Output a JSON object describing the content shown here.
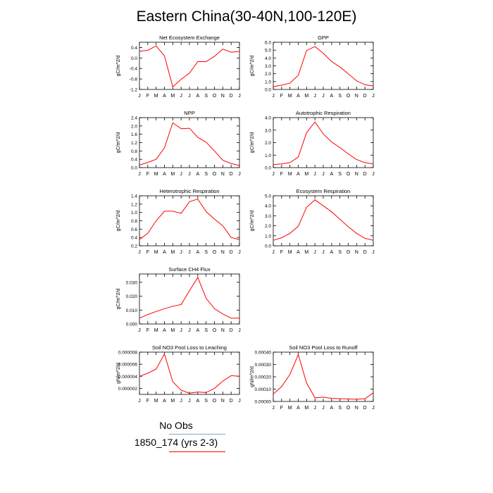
{
  "page": {
    "title": "Eastern China(30-40N,100-120E)"
  },
  "legend": [
    {
      "label": "No Obs",
      "color": "#8aa4c8"
    },
    {
      "label": "1850_174 (yrs 2-3)",
      "color": "#ff0000"
    }
  ],
  "chart_data": [
    {
      "type": "line",
      "title": "Net Ecosystem Exchange",
      "ylabel": "gC/m^2/d",
      "x": [
        "J",
        "F",
        "M",
        "A",
        "M",
        "J",
        "J",
        "A",
        "S",
        "O",
        "N",
        "D",
        "J"
      ],
      "ylim": [
        -1.2,
        0.6
      ],
      "yticks": [
        "0.4",
        "0.0",
        "-0.4",
        "-0.8",
        "-1.2"
      ],
      "ytick_values": [
        0.4,
        0.0,
        -0.4,
        -0.8,
        -1.2
      ],
      "series": [
        {
          "values": [
            0.26,
            0.29,
            0.46,
            0.08,
            -1.1,
            -0.81,
            -0.58,
            -0.14,
            -0.14,
            0.06,
            0.34,
            0.22,
            0.25
          ],
          "color": "#ff0000"
        }
      ]
    },
    {
      "type": "line",
      "title": "GPP",
      "ylabel": "gC/m^2/d",
      "x": [
        "J",
        "F",
        "M",
        "A",
        "M",
        "J",
        "J",
        "A",
        "S",
        "O",
        "N",
        "D",
        "J"
      ],
      "ylim": [
        0.0,
        6.0
      ],
      "yticks": [
        "6.0",
        "5.0",
        "4.0",
        "3.0",
        "2.0",
        "1.0",
        "0.0"
      ],
      "ytick_values": [
        6,
        5,
        4,
        3,
        2,
        1,
        0
      ],
      "series": [
        {
          "values": [
            0.35,
            0.55,
            0.8,
            1.8,
            4.95,
            5.45,
            4.6,
            3.55,
            2.85,
            2.0,
            1.1,
            0.6,
            0.45
          ],
          "color": "#ff0000"
        }
      ]
    },
    {
      "type": "line",
      "title": "NPP",
      "ylabel": "gC/m^2/d",
      "x": [
        "J",
        "F",
        "M",
        "A",
        "M",
        "J",
        "J",
        "A",
        "S",
        "O",
        "N",
        "D",
        "J"
      ],
      "ylim": [
        0.0,
        2.4
      ],
      "yticks": [
        "2.4",
        "2.0",
        "1.6",
        "1.2",
        "0.8",
        "0.4",
        "0.0"
      ],
      "ytick_values": [
        2.4,
        2.0,
        1.6,
        1.2,
        0.8,
        0.4,
        0.0
      ],
      "series": [
        {
          "values": [
            0.12,
            0.25,
            0.4,
            0.95,
            2.15,
            1.87,
            1.89,
            1.45,
            1.22,
            0.8,
            0.35,
            0.2,
            0.1
          ],
          "color": "#ff0000"
        }
      ]
    },
    {
      "type": "line",
      "title": "Autotrophic Respiration",
      "ylabel": "gC/m^2/d",
      "x": [
        "J",
        "F",
        "M",
        "A",
        "M",
        "J",
        "J",
        "A",
        "S",
        "O",
        "N",
        "D",
        "J"
      ],
      "ylim": [
        0.0,
        4.0
      ],
      "yticks": [
        "4.0",
        "3.0",
        "2.0",
        "1.0",
        "0.0"
      ],
      "ytick_values": [
        4,
        3,
        2,
        1,
        0
      ],
      "series": [
        {
          "values": [
            0.25,
            0.3,
            0.4,
            0.85,
            2.8,
            3.65,
            2.7,
            2.05,
            1.6,
            1.1,
            0.65,
            0.4,
            0.3
          ],
          "color": "#ff0000"
        }
      ]
    },
    {
      "type": "line",
      "title": "Heterotrophic Respiration",
      "ylabel": "gC/m^2/d",
      "x": [
        "J",
        "F",
        "M",
        "A",
        "M",
        "J",
        "J",
        "A",
        "S",
        "O",
        "N",
        "D",
        "J"
      ],
      "ylim": [
        0.2,
        1.4
      ],
      "yticks": [
        "1.4",
        "1.2",
        "1.0",
        "0.8",
        "0.6",
        "0.4",
        "0.2"
      ],
      "ytick_values": [
        1.4,
        1.2,
        1.0,
        0.8,
        0.6,
        0.4,
        0.2
      ],
      "series": [
        {
          "values": [
            0.35,
            0.5,
            0.8,
            1.03,
            1.03,
            0.98,
            1.26,
            1.32,
            1.02,
            0.84,
            0.68,
            0.4,
            0.35
          ],
          "color": "#ff0000"
        }
      ]
    },
    {
      "type": "line",
      "title": "Ecosystem Respiration",
      "ylabel": "gC/m^2/d",
      "x": [
        "J",
        "F",
        "M",
        "A",
        "M",
        "J",
        "J",
        "A",
        "S",
        "O",
        "N",
        "D",
        "J"
      ],
      "ylim": [
        0.0,
        5.0
      ],
      "yticks": [
        "5.0",
        "4.0",
        "3.0",
        "2.0",
        "1.0",
        "0.0"
      ],
      "ytick_values": [
        5,
        4,
        3,
        2,
        1,
        0
      ],
      "series": [
        {
          "values": [
            0.55,
            0.8,
            1.25,
            1.95,
            3.85,
            4.6,
            4.0,
            3.4,
            2.65,
            1.9,
            1.25,
            0.75,
            0.55
          ],
          "color": "#ff0000"
        }
      ]
    },
    {
      "type": "line",
      "title": "Surface CH4 Flux",
      "ylabel": "gC/m^2/d",
      "x": [
        "J",
        "F",
        "M",
        "A",
        "M",
        "J",
        "J",
        "A",
        "S",
        "O",
        "N",
        "D",
        "J"
      ],
      "ylim": [
        0.0,
        0.036
      ],
      "yticks": [
        "0.030",
        "0.020",
        "0.010",
        "0.000"
      ],
      "ytick_values": [
        0.03,
        0.02,
        0.01,
        0.0
      ],
      "series": [
        {
          "values": [
            0.0042,
            0.0068,
            0.009,
            0.011,
            0.0128,
            0.014,
            0.024,
            0.0335,
            0.0185,
            0.011,
            0.0072,
            0.0042,
            0.0042
          ],
          "color": "#ff0000"
        }
      ]
    },
    {
      "type": "line",
      "title": "Soil NO3 Pool Loss to Leaching",
      "ylabel": "gN/m^2/d",
      "x": [
        "J",
        "F",
        "M",
        "A",
        "M",
        "J",
        "J",
        "A",
        "S",
        "O",
        "N",
        "D",
        "J"
      ],
      "ylim": [
        1e-06,
        8e-06
      ],
      "yticks": [
        "0.000008",
        "0.000006",
        "0.000004",
        "0.000002"
      ],
      "ytick_values": [
        8e-06,
        6e-06,
        4e-06,
        2e-06
      ],
      "series": [
        {
          "values": [
            4e-06,
            4.5e-06,
            5.2e-06,
            7.7e-06,
            3.1e-06,
            1.7e-06,
            1.2e-06,
            1.4e-06,
            1.3e-06,
            2e-06,
            3.2e-06,
            4.1e-06,
            4e-06
          ],
          "color": "#ff0000"
        }
      ]
    },
    {
      "type": "line",
      "title": "Soil NO3 Pool Loss to Runoff",
      "ylabel": "gN/m^2/d",
      "x": [
        "J",
        "F",
        "M",
        "A",
        "M",
        "J",
        "J",
        "A",
        "S",
        "O",
        "N",
        "D",
        "J"
      ],
      "ylim": [
        0.0,
        0.0004
      ],
      "yticks": [
        "0.00040",
        "0.00030",
        "0.00020",
        "0.00010",
        "0.00000"
      ],
      "ytick_values": [
        0.0004,
        0.0003,
        0.0002,
        0.0001,
        0.0
      ],
      "series": [
        {
          "values": [
            6e-05,
            0.00012,
            0.00022,
            0.00038,
            0.00015,
            3e-05,
            3.5e-05,
            2.5e-05,
            2.2e-05,
            2e-05,
            1.8e-05,
            2.2e-05,
            7e-05
          ],
          "color": "#ff0000"
        }
      ]
    }
  ]
}
